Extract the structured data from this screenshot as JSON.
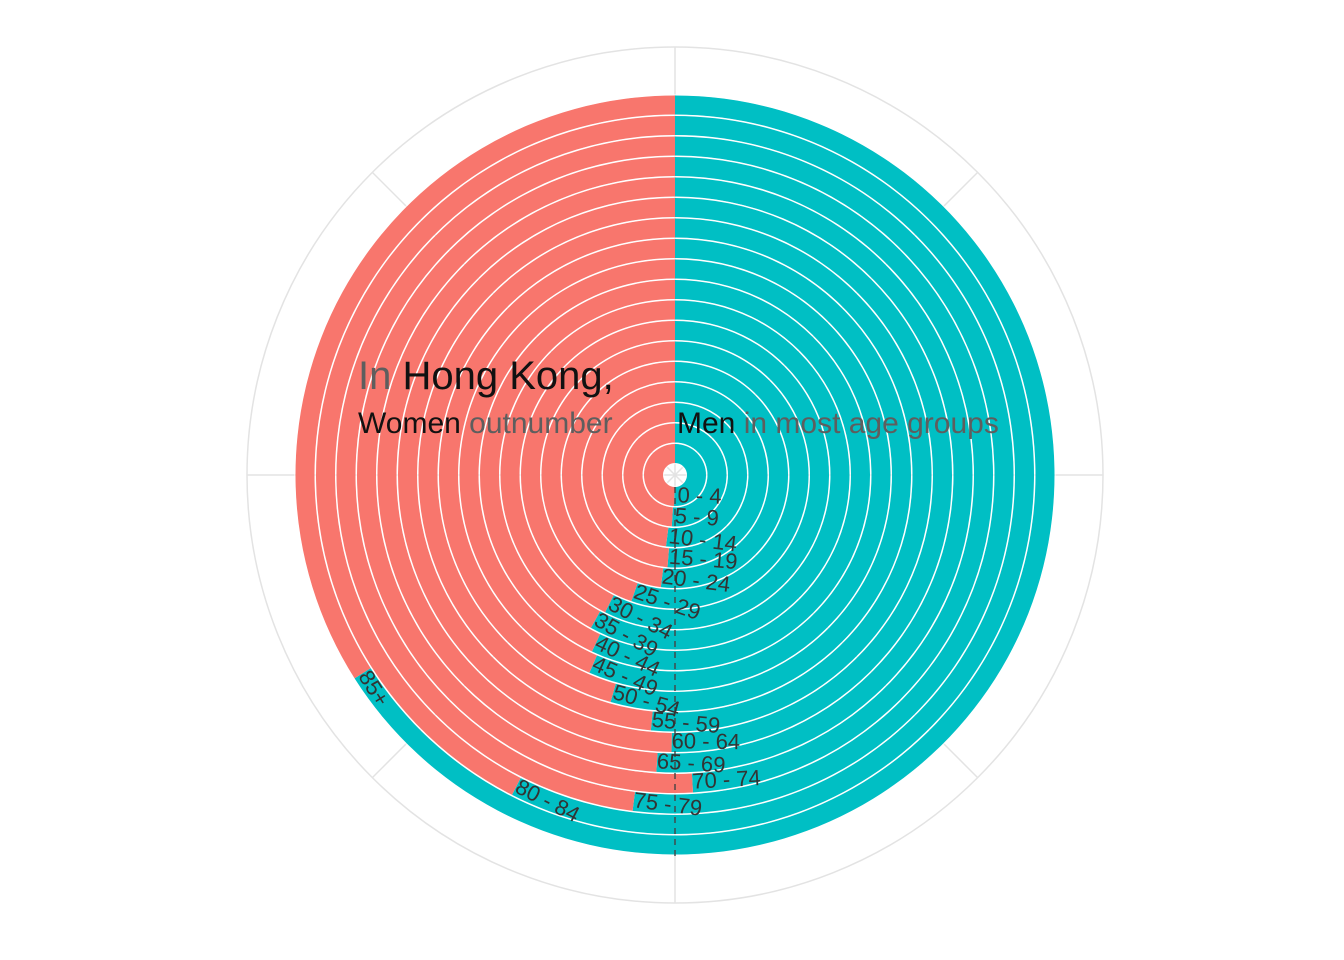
{
  "title": {
    "line1": {
      "part1": "In",
      "part2": "Hong Kong,"
    },
    "line2_left": {
      "part1": "Women",
      "part2": "outnumber"
    },
    "line2_right": {
      "part1": "Men",
      "part2": "in most age groups"
    }
  },
  "colors": {
    "women": "#F8766D",
    "men": "#00BFC4",
    "grid": "#E3E3E3",
    "label": "#333333",
    "title_dark": "#111111",
    "title_grey": "#5E5E5E"
  },
  "chart_data": {
    "type": "bar",
    "coordinate_system": "polar",
    "stacked": true,
    "stack_order": [
      "Men",
      "Women"
    ],
    "categories": [
      "0 - 4",
      "5 - 9",
      "10 - 14",
      "15 - 19",
      "20 - 24",
      "25 - 29",
      "30 - 34",
      "35 - 39",
      "40 - 44",
      "45 - 49",
      "50 - 54",
      "55 - 59",
      "60 - 64",
      "65 - 69",
      "70 - 74",
      "75 - 79",
      "80 - 84",
      "85+"
    ],
    "series": [
      {
        "values": [
          0.505,
          0.51,
          0.52,
          0.513,
          0.52,
          0.553,
          0.575,
          0.58,
          0.57,
          0.565,
          0.544,
          0.515,
          0.502,
          0.51,
          0.491,
          0.52,
          0.575,
          0.66
        ]
      },
      {
        "values": [
          0.495,
          0.49,
          0.48,
          0.487,
          0.48,
          0.447,
          0.425,
          0.42,
          0.43,
          0.435,
          0.456,
          0.485,
          0.498,
          0.49,
          0.509,
          0.48,
          0.425,
          0.34
        ]
      }
    ],
    "reference_line": 0.5,
    "axis_range": [
      0,
      1
    ],
    "grid": true,
    "legend": "none"
  }
}
